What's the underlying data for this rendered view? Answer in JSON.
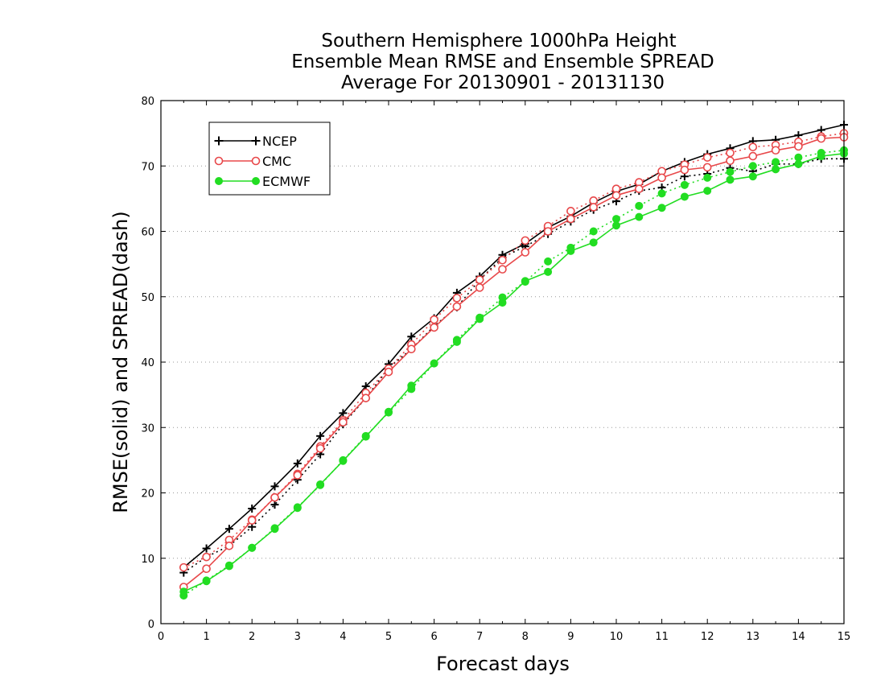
{
  "chart_data": {
    "type": "line",
    "title": [
      "Southern Hemisphere 1000hPa Height",
      "Ensemble Mean RMSE and Ensemble SPREAD",
      "Average For 20130901 - 20131130"
    ],
    "xlabel": "Forecast days",
    "ylabel": "RMSE(solid) and SPREAD(dash)",
    "xlim": [
      0,
      15
    ],
    "ylim": [
      0,
      80
    ],
    "xticks": [
      "0",
      "1",
      "2",
      "3",
      "4",
      "5",
      "6",
      "7",
      "8",
      "9",
      "10",
      "11",
      "12",
      "13",
      "14",
      "15"
    ],
    "yticks": [
      "0",
      "10",
      "20",
      "30",
      "40",
      "50",
      "60",
      "70",
      "80"
    ],
    "grid": "horizontal dotted",
    "legend_position": "top-left",
    "x": [
      0.5,
      1,
      1.5,
      2,
      2.5,
      3,
      3.5,
      4,
      4.5,
      5,
      5.5,
      6,
      6.5,
      7,
      7.5,
      8,
      8.5,
      9,
      9.5,
      10,
      10.5,
      11,
      11.5,
      12,
      12.5,
      13,
      13.5,
      14,
      14.5,
      15
    ],
    "series": [
      {
        "name": "NCEP",
        "color": "#000000",
        "marker": "plus",
        "rmse": [
          8.6,
          11.5,
          14.5,
          17.6,
          21.0,
          24.5,
          28.7,
          32.2,
          36.3,
          39.7,
          43.9,
          46.7,
          50.6,
          53.1,
          56.4,
          58.1,
          60.6,
          62.3,
          64.4,
          66.1,
          67.2,
          69.2,
          70.6,
          71.8,
          72.7,
          73.8,
          74.0,
          74.7,
          75.5,
          76.3
        ],
        "spread": [
          7.8,
          10.2,
          11.9,
          14.8,
          18.2,
          22.0,
          25.9,
          30.5,
          34.5,
          39.1,
          42.0,
          45.5,
          48.4,
          52.6,
          56.0,
          57.7,
          59.6,
          61.5,
          63.3,
          64.6,
          66.2,
          66.7,
          68.4,
          68.8,
          69.7,
          69.2,
          70.3,
          70.3,
          71.1,
          71.1
        ]
      },
      {
        "name": "CMC",
        "color": "#e8484a",
        "marker": "circle-open",
        "rmse": [
          5.6,
          8.4,
          11.9,
          15.8,
          19.3,
          22.7,
          26.8,
          30.8,
          34.5,
          38.5,
          42.0,
          45.3,
          48.5,
          51.4,
          54.2,
          56.8,
          60.0,
          61.9,
          63.7,
          65.5,
          66.5,
          68.2,
          69.4,
          69.8,
          70.8,
          71.5,
          72.4,
          73.0,
          74.2,
          74.4
        ],
        "spread": [
          8.6,
          10.2,
          12.8,
          15.9,
          19.3,
          22.9,
          27.1,
          31.1,
          35.3,
          39.0,
          42.7,
          46.5,
          49.8,
          52.6,
          55.6,
          58.6,
          60.8,
          63.1,
          64.7,
          66.5,
          67.5,
          69.2,
          70.2,
          71.3,
          72.0,
          72.9,
          73.2,
          73.7,
          74.5,
          75.0
        ]
      },
      {
        "name": "ECMWF",
        "color": "#22dd22",
        "marker": "circle-filled",
        "rmse": [
          4.9,
          6.5,
          8.8,
          11.6,
          14.5,
          17.7,
          21.3,
          24.9,
          28.6,
          32.4,
          36.4,
          39.8,
          43.1,
          46.6,
          49.1,
          52.4,
          53.8,
          57.0,
          58.3,
          60.9,
          62.2,
          63.6,
          65.3,
          66.2,
          67.9,
          68.4,
          69.5,
          70.3,
          71.5,
          71.9
        ],
        "spread": [
          4.3,
          6.6,
          8.9,
          11.6,
          14.6,
          17.8,
          21.2,
          25.0,
          28.7,
          32.3,
          35.9,
          39.8,
          43.4,
          46.8,
          49.9,
          52.3,
          55.4,
          57.5,
          60.0,
          61.9,
          63.9,
          65.8,
          67.1,
          68.2,
          69.1,
          70.0,
          70.6,
          71.3,
          72.0,
          72.4
        ]
      }
    ]
  }
}
